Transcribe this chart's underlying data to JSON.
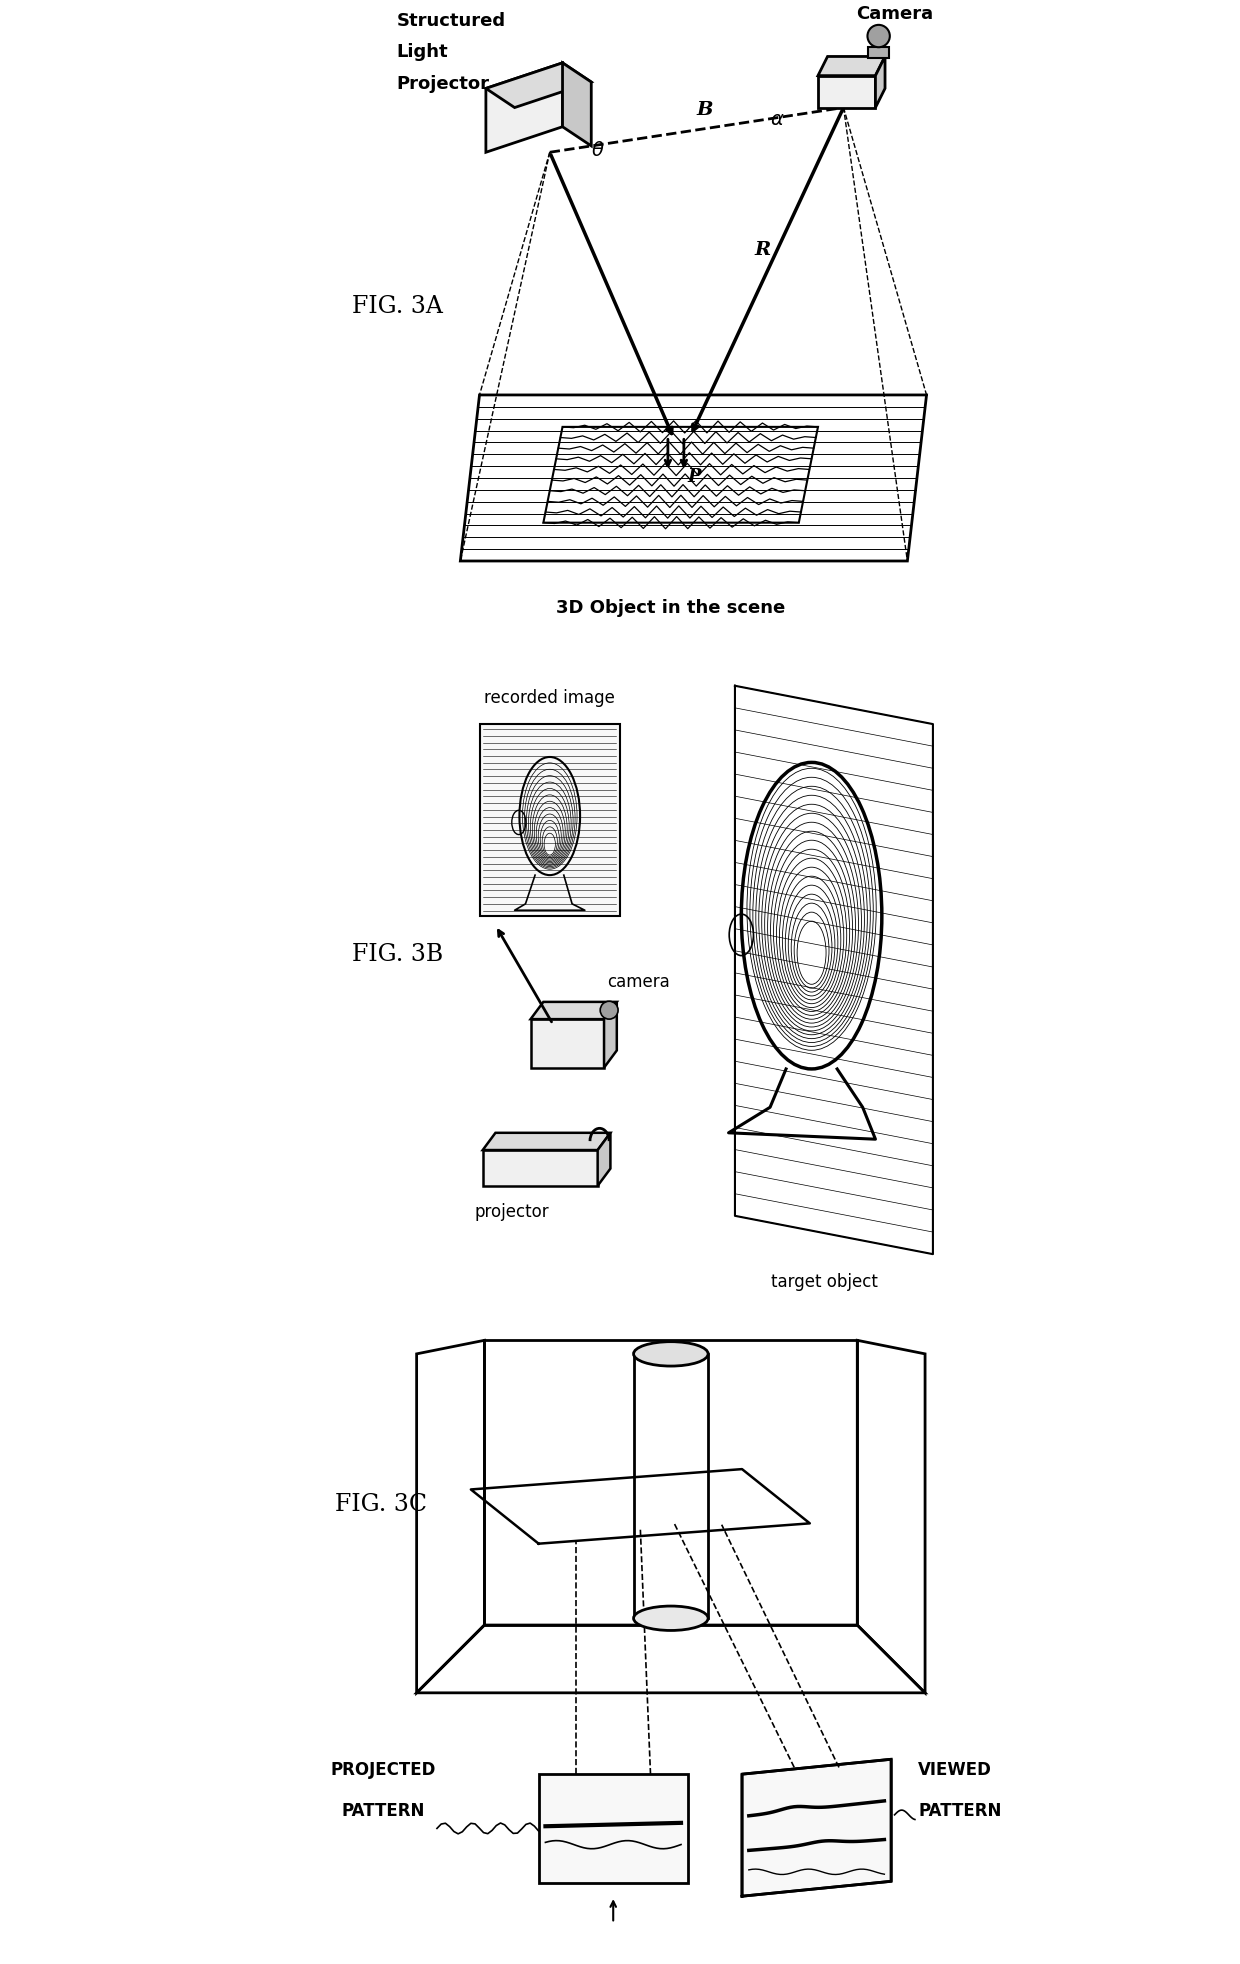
{
  "background": "#ffffff",
  "lc": "#000000",
  "fig3a_label": "FIG. 3A",
  "fig3b_label": "FIG. 3B",
  "fig3c_label": "FIG. 3C",
  "label_structured_1": "Structured",
  "label_structured_2": "Light",
  "label_structured_3": "Projector",
  "label_camera": "Camera",
  "label_3d_object": "3D Object in the scene",
  "label_recorded": "recorded image",
  "label_camera_b": "camera",
  "label_projector_b": "projector",
  "label_target": "target object",
  "label_projected_1": "PROJECTED",
  "label_projected_2": "PATTERN",
  "label_viewed_1": "VIEWED",
  "label_viewed_2": "PATTERN"
}
